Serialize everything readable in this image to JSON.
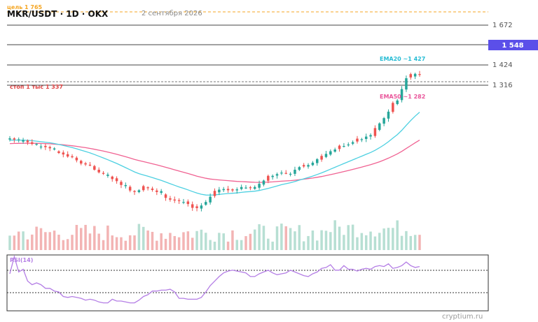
{
  "header": {
    "title": "MKR/USDT · 1D · OKX",
    "target_label": "цель 1 765",
    "date_label": "2 сентября 2026"
  },
  "colors": {
    "up": "#26a69a",
    "down": "#ef5350",
    "ema20": "#4dd0e1",
    "ema50": "#f06292",
    "rsi": "#b47ee5",
    "target": "#f5a623",
    "price_badge": "#5b4fe9"
  },
  "price_badge": "1 548",
  "watermark": "cryptium.ru",
  "annotations": {
    "stop": "стоп 1 тыс 1 337",
    "ema20": "EMA20 ~1 427",
    "ema50": "EMA50 ~1 282"
  },
  "chart_data": {
    "type": "candlestick",
    "title": "MKR/USDT · 1D · OKX",
    "ylim": [
      1080,
      1790
    ],
    "levels": [
      {
        "label": "1 672",
        "value": 1672
      },
      {
        "label": "1 424",
        "value": 1424
      },
      {
        "label": "1 316",
        "value": 1316
      }
    ],
    "target": 1765,
    "stop": 1337,
    "current_price": 1548,
    "close": [
      1330,
      1326,
      1321,
      1324,
      1317,
      1311,
      1304,
      1302,
      1300,
      1296,
      1287,
      1280,
      1275,
      1268,
      1264,
      1255,
      1244,
      1241,
      1235,
      1223,
      1214,
      1209,
      1197,
      1191,
      1184,
      1171,
      1162,
      1152,
      1147,
      1153,
      1162,
      1160,
      1154,
      1147,
      1139,
      1127,
      1121,
      1118,
      1114,
      1113,
      1106,
      1093,
      1093,
      1101,
      1113,
      1131,
      1146,
      1155,
      1157,
      1153,
      1151,
      1156,
      1164,
      1162,
      1158,
      1164,
      1175,
      1186,
      1197,
      1202,
      1208,
      1213,
      1207,
      1209,
      1223,
      1232,
      1234,
      1239,
      1247,
      1259,
      1265,
      1277,
      1286,
      1292,
      1300,
      1304,
      1309,
      1317,
      1324,
      1327,
      1336,
      1341,
      1360,
      1381,
      1399,
      1421,
      1446,
      1459,
      1498,
      1535,
      1544,
      1550,
      1548
    ],
    "ema20": {
      "label": "EMA20 ~1 427",
      "value": 1427
    },
    "ema50": {
      "label": "EMA50 ~1 282",
      "value": 1282
    },
    "rsi": {
      "label": "RSI(14)",
      "values": [
        60,
        79,
        62,
        65,
        52,
        48,
        50,
        48,
        44,
        44,
        41,
        40,
        35,
        34,
        35,
        34,
        33,
        31,
        32,
        31,
        29,
        28,
        28,
        32,
        30,
        30,
        29,
        28,
        28,
        31,
        35,
        37,
        41,
        41,
        42,
        42,
        43,
        40,
        33,
        33,
        32,
        32,
        32,
        34,
        40,
        47,
        52,
        57,
        61,
        63,
        64,
        63,
        62,
        61,
        57,
        57,
        60,
        62,
        64,
        61,
        59,
        60,
        61,
        64,
        62,
        60,
        58,
        57,
        60,
        62,
        66,
        67,
        70,
        64,
        64,
        69,
        65,
        65,
        63,
        65,
        66,
        65,
        68,
        69,
        68,
        71,
        66,
        67,
        69,
        73,
        69,
        67,
        68
      ]
    }
  }
}
